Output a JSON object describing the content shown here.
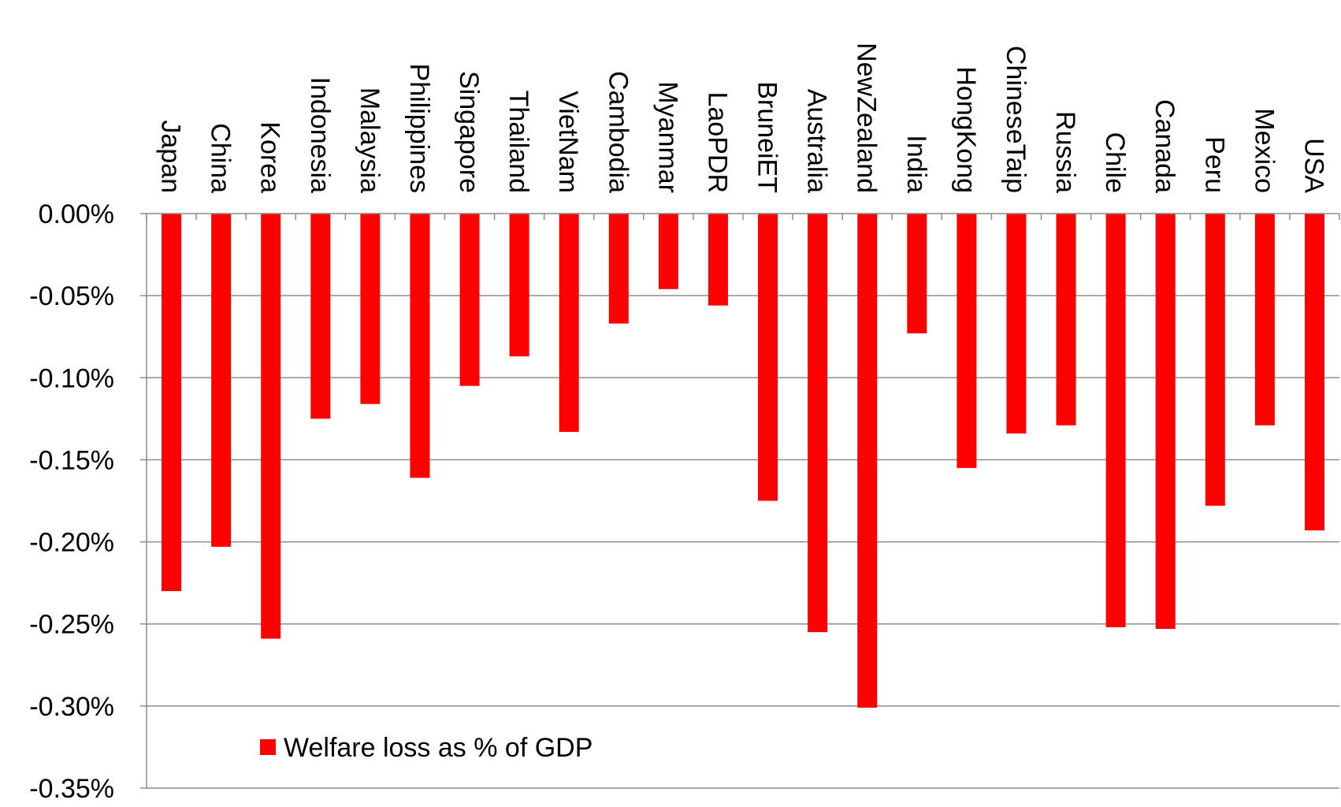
{
  "chart_data": {
    "type": "bar",
    "categories": [
      "Japan",
      "China",
      "Korea",
      "Indonesia",
      "Malaysia",
      "Philippines",
      "Singapore",
      "Thailand",
      "VietNam",
      "Cambodia",
      "Myanmar",
      "LaoPDR",
      "BruneiET",
      "Australia",
      "NewZealand",
      "India",
      "HongKong",
      "ChineseTaip",
      "Russia",
      "Chile",
      "Canada",
      "Peru",
      "Mexico",
      "USA"
    ],
    "series": [
      {
        "name": "Welfare loss as % of GDP",
        "values": [
          -0.23,
          -0.203,
          -0.259,
          -0.125,
          -0.116,
          -0.161,
          -0.105,
          -0.087,
          -0.133,
          -0.067,
          -0.046,
          -0.056,
          -0.175,
          -0.255,
          -0.301,
          -0.073,
          -0.155,
          -0.134,
          -0.129,
          -0.252,
          -0.253,
          -0.178,
          -0.129,
          -0.193
        ]
      }
    ],
    "ylim": [
      -0.35,
      0.0
    ],
    "yticks": [
      0.0,
      -0.05,
      -0.1,
      -0.15,
      -0.2,
      -0.25,
      -0.3,
      -0.35
    ],
    "ytick_labels": [
      "0.00%",
      "-0.05%",
      "-0.10%",
      "-0.15%",
      "-0.20%",
      "-0.25%",
      "-0.30%",
      "-0.35%"
    ],
    "title": "",
    "xlabel": "",
    "ylabel": "",
    "grid": true,
    "legend_position": "bottom-left",
    "bar_color": "#ff0000",
    "grid_color": "#8c8c8c"
  }
}
